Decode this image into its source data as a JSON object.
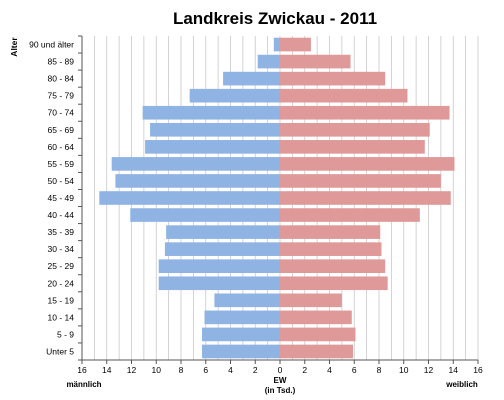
{
  "chart_data": {
    "type": "bar",
    "orientation": "horizontal-population-pyramid",
    "title": "Landkreis Zwickau - 2011",
    "ylabel": "Alter",
    "xlabel_center": [
      "EW",
      "(in Tsd.)"
    ],
    "left_label": "männlich",
    "right_label": "weiblich",
    "xlim": [
      -16,
      16
    ],
    "xticks": [
      16,
      14,
      12,
      10,
      8,
      6,
      4,
      2,
      0,
      2,
      4,
      6,
      8,
      10,
      12,
      14,
      16
    ],
    "grid": true,
    "categories": [
      "90 und älter",
      "85 - 89",
      "80 - 84",
      "75 - 79",
      "70 - 74",
      "65 - 69",
      "60 - 64",
      "55 - 59",
      "50 - 54",
      "45 - 49",
      "40 - 44",
      "35 - 39",
      "30 - 34",
      "25 - 29",
      "20 - 24",
      "15 - 19",
      "10 - 14",
      "5 - 9",
      "Unter 5"
    ],
    "series": [
      {
        "name": "männlich",
        "color": "#8fb4e3",
        "values": [
          0.5,
          1.8,
          4.6,
          7.3,
          11.1,
          10.5,
          10.9,
          13.6,
          13.3,
          14.6,
          12.1,
          9.2,
          9.3,
          9.8,
          9.8,
          5.3,
          6.1,
          6.3,
          6.3
        ]
      },
      {
        "name": "weiblich",
        "color": "#e09999",
        "values": [
          2.5,
          5.7,
          8.5,
          10.3,
          13.7,
          12.1,
          11.7,
          14.1,
          13.0,
          13.8,
          11.3,
          8.1,
          8.2,
          8.5,
          8.7,
          5.0,
          5.8,
          6.1,
          5.9
        ]
      }
    ]
  }
}
